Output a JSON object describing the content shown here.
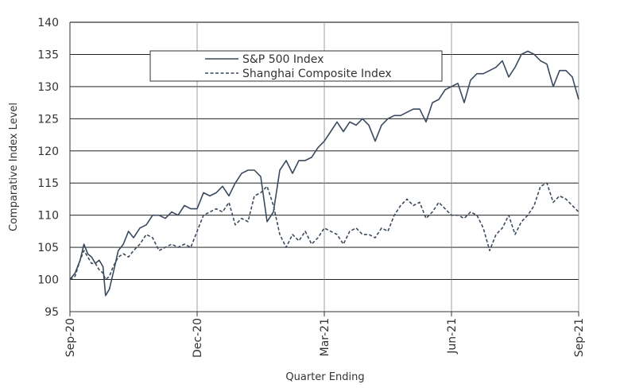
{
  "chart_data": {
    "type": "line",
    "xlabel": "Quarter Ending",
    "ylabel": "Comparative Index Level",
    "ylim": [
      95,
      140
    ],
    "yticks": [
      95,
      100,
      105,
      110,
      115,
      120,
      125,
      130,
      135,
      140
    ],
    "xticks": [
      "Sep-20",
      "Dec-20",
      "Mar-21",
      "Jun-21",
      "Sep-21"
    ],
    "grid": "vertical and horizontal",
    "legend_position": "top-center",
    "series": [
      {
        "name": "S&P 500 Index",
        "style": "solid",
        "color": "#3b4a5e",
        "points": [
          [
            0,
            100
          ],
          [
            0.04,
            101
          ],
          [
            0.08,
            103
          ],
          [
            0.11,
            105.5
          ],
          [
            0.14,
            104
          ],
          [
            0.17,
            103.5
          ],
          [
            0.2,
            102.5
          ],
          [
            0.23,
            103
          ],
          [
            0.26,
            102
          ],
          [
            0.28,
            97.5
          ],
          [
            0.31,
            98.5
          ],
          [
            0.34,
            101
          ],
          [
            0.38,
            104.5
          ],
          [
            0.42,
            105.5
          ],
          [
            0.46,
            107.5
          ],
          [
            0.5,
            106.5
          ],
          [
            0.55,
            108
          ],
          [
            0.6,
            108.5
          ],
          [
            0.65,
            110
          ],
          [
            0.7,
            110
          ],
          [
            0.75,
            109.5
          ],
          [
            0.8,
            110.5
          ],
          [
            0.85,
            110
          ],
          [
            0.9,
            111.5
          ],
          [
            0.95,
            111
          ],
          [
            1.0,
            111
          ],
          [
            1.05,
            113.5
          ],
          [
            1.1,
            113
          ],
          [
            1.15,
            113.5
          ],
          [
            1.2,
            114.5
          ],
          [
            1.25,
            113
          ],
          [
            1.3,
            115
          ],
          [
            1.35,
            116.5
          ],
          [
            1.4,
            117
          ],
          [
            1.45,
            117
          ],
          [
            1.5,
            116
          ],
          [
            1.55,
            109
          ],
          [
            1.6,
            110.5
          ],
          [
            1.65,
            117
          ],
          [
            1.7,
            118.5
          ],
          [
            1.75,
            116.5
          ],
          [
            1.8,
            118.5
          ],
          [
            1.85,
            118.5
          ],
          [
            1.9,
            119
          ],
          [
            1.95,
            120.5
          ],
          [
            2.0,
            121.5
          ],
          [
            2.05,
            123
          ],
          [
            2.1,
            124.5
          ],
          [
            2.15,
            123
          ],
          [
            2.2,
            124.5
          ],
          [
            2.25,
            124
          ],
          [
            2.3,
            125
          ],
          [
            2.35,
            124
          ],
          [
            2.4,
            121.5
          ],
          [
            2.45,
            124
          ],
          [
            2.5,
            125
          ],
          [
            2.55,
            125.5
          ],
          [
            2.6,
            125.5
          ],
          [
            2.65,
            126
          ],
          [
            2.7,
            126.5
          ],
          [
            2.75,
            126.5
          ],
          [
            2.8,
            124.5
          ],
          [
            2.85,
            127.5
          ],
          [
            2.9,
            128
          ],
          [
            2.95,
            129.5
          ],
          [
            3.0,
            130
          ],
          [
            3.05,
            130.5
          ],
          [
            3.1,
            127.5
          ],
          [
            3.15,
            131
          ],
          [
            3.2,
            132
          ],
          [
            3.25,
            132
          ],
          [
            3.3,
            132.5
          ],
          [
            3.35,
            133
          ],
          [
            3.4,
            134
          ],
          [
            3.45,
            131.5
          ],
          [
            3.5,
            133
          ],
          [
            3.55,
            135
          ],
          [
            3.6,
            135.5
          ],
          [
            3.65,
            135
          ],
          [
            3.7,
            134
          ],
          [
            3.75,
            133.5
          ],
          [
            3.8,
            130
          ],
          [
            3.85,
            132.5
          ],
          [
            3.9,
            132.5
          ],
          [
            3.95,
            131.5
          ],
          [
            4.0,
            128
          ]
        ]
      },
      {
        "name": "Shanghai Composite Index",
        "style": "dashed",
        "color": "#3b4a5e",
        "points": [
          [
            0,
            100
          ],
          [
            0.04,
            100.5
          ],
          [
            0.08,
            103
          ],
          [
            0.11,
            104.5
          ],
          [
            0.14,
            103.5
          ],
          [
            0.17,
            102.5
          ],
          [
            0.2,
            102.5
          ],
          [
            0.23,
            101.5
          ],
          [
            0.26,
            101
          ],
          [
            0.28,
            100
          ],
          [
            0.31,
            100.5
          ],
          [
            0.34,
            102
          ],
          [
            0.38,
            103.5
          ],
          [
            0.42,
            104
          ],
          [
            0.46,
            103.5
          ],
          [
            0.5,
            104.5
          ],
          [
            0.55,
            105.5
          ],
          [
            0.6,
            107
          ],
          [
            0.65,
            106.5
          ],
          [
            0.7,
            104.5
          ],
          [
            0.75,
            105
          ],
          [
            0.8,
            105.5
          ],
          [
            0.85,
            105
          ],
          [
            0.9,
            105.5
          ],
          [
            0.95,
            105
          ],
          [
            1.0,
            107.5
          ],
          [
            1.05,
            110
          ],
          [
            1.1,
            110.5
          ],
          [
            1.15,
            111
          ],
          [
            1.2,
            110.5
          ],
          [
            1.25,
            112
          ],
          [
            1.3,
            108.5
          ],
          [
            1.35,
            109.5
          ],
          [
            1.4,
            109
          ],
          [
            1.45,
            113
          ],
          [
            1.5,
            113.5
          ],
          [
            1.55,
            114.5
          ],
          [
            1.6,
            111.5
          ],
          [
            1.65,
            107
          ],
          [
            1.7,
            105
          ],
          [
            1.75,
            107
          ],
          [
            1.8,
            106
          ],
          [
            1.85,
            107.5
          ],
          [
            1.9,
            105.5
          ],
          [
            1.95,
            106.5
          ],
          [
            2.0,
            108
          ],
          [
            2.05,
            107.5
          ],
          [
            2.1,
            107
          ],
          [
            2.15,
            105.5
          ],
          [
            2.2,
            107.5
          ],
          [
            2.25,
            108
          ],
          [
            2.3,
            107
          ],
          [
            2.35,
            107
          ],
          [
            2.4,
            106.5
          ],
          [
            2.45,
            108
          ],
          [
            2.5,
            107.5
          ],
          [
            2.55,
            110
          ],
          [
            2.6,
            111.5
          ],
          [
            2.65,
            112.5
          ],
          [
            2.7,
            111.5
          ],
          [
            2.75,
            112
          ],
          [
            2.8,
            109.5
          ],
          [
            2.85,
            110.5
          ],
          [
            2.9,
            112
          ],
          [
            2.95,
            111
          ],
          [
            3.0,
            110
          ],
          [
            3.05,
            110
          ],
          [
            3.1,
            109.5
          ],
          [
            3.15,
            110.5
          ],
          [
            3.2,
            110
          ],
          [
            3.25,
            108
          ],
          [
            3.3,
            104.5
          ],
          [
            3.35,
            107
          ],
          [
            3.4,
            108
          ],
          [
            3.45,
            110
          ],
          [
            3.5,
            107
          ],
          [
            3.55,
            109
          ],
          [
            3.6,
            110
          ],
          [
            3.65,
            111.5
          ],
          [
            3.7,
            114.5
          ],
          [
            3.75,
            115
          ],
          [
            3.8,
            112
          ],
          [
            3.85,
            113
          ],
          [
            3.9,
            112.5
          ],
          [
            3.95,
            111.5
          ],
          [
            4.0,
            110.5
          ]
        ]
      }
    ]
  }
}
